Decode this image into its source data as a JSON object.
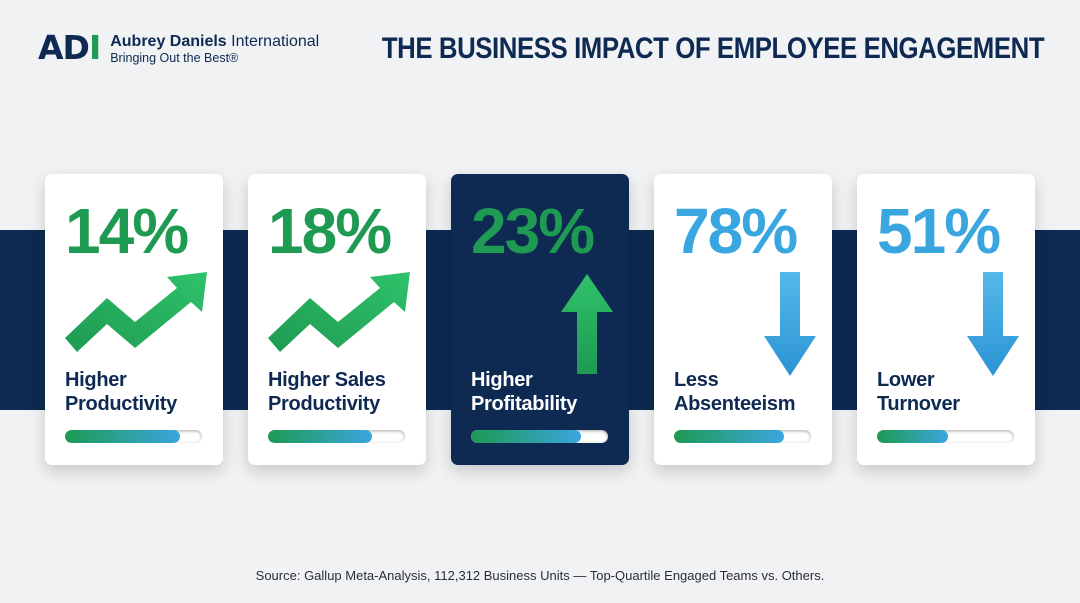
{
  "header": {
    "logo_mark_main": "AD",
    "logo_mark_accent": "I",
    "company_bold": "Aubrey Daniels",
    "company_rest": " International",
    "tagline": "Bringing Out the Best®",
    "title": "THE BUSINESS IMPACT OF EMPLOYEE ENGAGEMENT"
  },
  "colors": {
    "navy": "#0e2a52",
    "green": "#1e9a52",
    "blue": "#3aa6e0",
    "background": "#f1f2f4"
  },
  "cards": [
    {
      "value": "14%",
      "line1": "Higher",
      "line2": "Productivity",
      "icon": "trend-up-arrow-icon",
      "bar_fraction": 0.84
    },
    {
      "value": "18%",
      "line1": "Higher Sales",
      "line2": "Productivity",
      "icon": "trend-up-arrow-icon",
      "bar_fraction": 0.76
    },
    {
      "value": "23%",
      "line1": "Higher",
      "line2": "Profitability",
      "icon": "up-arrow-icon",
      "bar_fraction": 0.8
    },
    {
      "value": "78%",
      "line1": "Less",
      "line2": "Absenteeism",
      "icon": "down-arrow-icon",
      "bar_fraction": 0.8
    },
    {
      "value": "51%",
      "line1": "Lower",
      "line2": "Turnover",
      "icon": "down-arrow-icon",
      "bar_fraction": 0.52
    }
  ],
  "source": "Source: Gallup Meta-Analysis, 112,312 Business Units — Top-Quartile Engaged Teams vs. Others."
}
